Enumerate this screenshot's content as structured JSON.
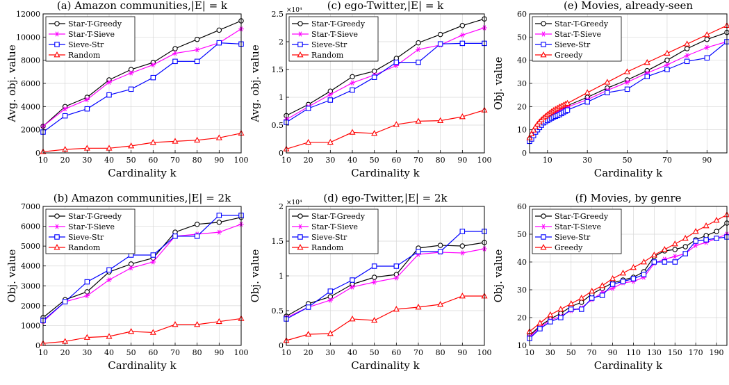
{
  "figure": {
    "panels": [
      {
        "title": "(a) Amazon communities,|E| = k",
        "xlabel": "Cardinality k",
        "ylabel": "Avg. obj. value"
      },
      {
        "title": "(c) ego-Twitter,|E| = k",
        "xlabel": "Cardinality k",
        "ylabel": "Avg. obj. value"
      },
      {
        "title": "(e) Movies, already-seen",
        "xlabel": "Cardinality k",
        "ylabel": "Obj. value"
      },
      {
        "title": "(b) Amazon communities,|E| = 2k",
        "xlabel": "Cardinality k",
        "ylabel": "Obj. value"
      },
      {
        "title": "(d) ego-Twitter,|E| = 2k",
        "xlabel": "Cardinality k",
        "ylabel": "Obj. value"
      },
      {
        "title": "(f) Movies, by genre",
        "xlabel": "Cardinality k",
        "ylabel": "Obj. value"
      }
    ]
  },
  "style": {
    "series_colors": {
      "Star-T-Greedy": "#000000",
      "Star-T-Sieve": "#ff00ff",
      "Sieve-Str": "#0000ff",
      "Random": "#ff0000",
      "Greedy": "#ff0000"
    },
    "series_markers": {
      "Star-T-Greedy": "circle",
      "Star-T-Sieve": "asterisk",
      "Sieve-Str": "square",
      "Random": "triangle",
      "Greedy": "triangle"
    }
  },
  "chart_data": [
    {
      "type": "line",
      "title": "(a) Amazon communities,|E| = k",
      "xlabel": "Cardinality k",
      "ylabel": "Avg. obj. value",
      "xlim": [
        10,
        100
      ],
      "ylim": [
        0,
        12000
      ],
      "xticks": [
        10,
        20,
        30,
        40,
        50,
        60,
        70,
        80,
        90,
        100
      ],
      "yticks": [
        0,
        2000,
        4000,
        6000,
        8000,
        10000,
        12000
      ],
      "grid": true,
      "legend": "top-left",
      "x": [
        10,
        20,
        30,
        40,
        50,
        60,
        70,
        80,
        90,
        100
      ],
      "series": [
        {
          "name": "Star-T-Greedy",
          "values": [
            2300,
            4000,
            4800,
            6300,
            7200,
            7800,
            9000,
            9800,
            10600,
            11400
          ]
        },
        {
          "name": "Star-T-Sieve",
          "values": [
            2300,
            3800,
            4600,
            6100,
            6900,
            7600,
            8600,
            8900,
            9500,
            10700
          ]
        },
        {
          "name": "Sieve-Str",
          "values": [
            1800,
            3200,
            3800,
            5000,
            5500,
            6500,
            7900,
            7900,
            9500,
            9400
          ]
        },
        {
          "name": "Random",
          "values": [
            100,
            300,
            400,
            400,
            600,
            900,
            1000,
            1100,
            1300,
            1700
          ]
        }
      ]
    },
    {
      "type": "line",
      "title": "(c) ego-Twitter,|E| = k",
      "xlabel": "Cardinality k",
      "ylabel": "Avg. obj. value",
      "exponent_label": "×10⁴",
      "xlim": [
        10,
        100
      ],
      "ylim": [
        0,
        2.5
      ],
      "xticks": [
        10,
        20,
        30,
        40,
        50,
        60,
        70,
        80,
        90,
        100
      ],
      "yticks": [
        0,
        0.5,
        1,
        1.5,
        2,
        2.5
      ],
      "grid": true,
      "legend": "top-left",
      "x": [
        10,
        20,
        30,
        40,
        50,
        60,
        70,
        80,
        90,
        100
      ],
      "series": [
        {
          "name": "Star-T-Greedy",
          "values": [
            0.67,
            0.87,
            1.11,
            1.37,
            1.47,
            1.7,
            1.98,
            2.13,
            2.29,
            2.41
          ]
        },
        {
          "name": "Star-T-Sieve",
          "values": [
            0.6,
            0.83,
            1.05,
            1.26,
            1.4,
            1.57,
            1.86,
            1.94,
            2.12,
            2.25
          ]
        },
        {
          "name": "Sieve-Str",
          "values": [
            0.55,
            0.8,
            0.95,
            1.13,
            1.36,
            1.63,
            1.63,
            1.96,
            1.97,
            1.97
          ]
        },
        {
          "name": "Random",
          "values": [
            0.07,
            0.19,
            0.19,
            0.37,
            0.35,
            0.51,
            0.57,
            0.58,
            0.65,
            0.77
          ]
        }
      ]
    },
    {
      "type": "line",
      "title": "(e) Movies, already-seen",
      "xlabel": "Cardinality k",
      "ylabel": "Obj. value",
      "xlim": [
        1,
        100
      ],
      "ylim": [
        0,
        60
      ],
      "xticks": [
        10,
        30,
        50,
        70,
        90
      ],
      "yticks": [
        0,
        10,
        20,
        30,
        40,
        50,
        60
      ],
      "grid": true,
      "legend": "top-left",
      "x": [
        1,
        2,
        3,
        4,
        5,
        6,
        7,
        8,
        9,
        10,
        11,
        12,
        13,
        14,
        15,
        16,
        17,
        18,
        19,
        20,
        30,
        40,
        50,
        60,
        70,
        80,
        90,
        100
      ],
      "series": [
        {
          "name": "Star-T-Greedy",
          "values": [
            6,
            7.5,
            9,
            10.5,
            11.5,
            12.5,
            13.5,
            14.5,
            15.2,
            15.9,
            16.5,
            17.1,
            17.7,
            18.2,
            18.6,
            19,
            19.4,
            19.8,
            20.1,
            20.4,
            24,
            28,
            31.5,
            35.5,
            40,
            45,
            49,
            52
          ]
        },
        {
          "name": "Star-T-Sieve",
          "values": [
            5.5,
            7,
            8.5,
            10,
            11,
            12,
            13,
            13.8,
            14.5,
            15.2,
            15.8,
            16.4,
            16.9,
            17.4,
            17.9,
            18.3,
            18.7,
            19.1,
            19.4,
            19.8,
            23,
            27,
            30.5,
            34.5,
            38,
            42,
            45.5,
            48
          ]
        },
        {
          "name": "Sieve-Str",
          "values": [
            5,
            6,
            7.5,
            9,
            10,
            11,
            12,
            13,
            13.5,
            14,
            14.5,
            15,
            15.5,
            15.8,
            16.1,
            16.5,
            17,
            17.5,
            18,
            18.5,
            22,
            26,
            27.5,
            33,
            36,
            39.5,
            41,
            48
          ]
        },
        {
          "name": "Greedy",
          "values": [
            6.5,
            8.2,
            9.8,
            11.2,
            12.4,
            13.4,
            14.3,
            15.1,
            15.8,
            16.5,
            17.1,
            17.7,
            18.3,
            18.8,
            19.3,
            19.8,
            20.2,
            20.6,
            21,
            21.4,
            26,
            30.5,
            35,
            39,
            43,
            47,
            51,
            55
          ]
        }
      ]
    },
    {
      "type": "line",
      "title": "(b) Amazon communities,|E| = 2k",
      "xlabel": "Cardinality k",
      "ylabel": "Obj. value",
      "xlim": [
        10,
        100
      ],
      "ylim": [
        0,
        7000
      ],
      "xticks": [
        10,
        20,
        30,
        40,
        50,
        60,
        70,
        80,
        90,
        100
      ],
      "yticks": [
        0,
        1000,
        2000,
        3000,
        4000,
        5000,
        6000,
        7000
      ],
      "grid": true,
      "legend": "top-left",
      "x": [
        10,
        20,
        30,
        40,
        50,
        60,
        70,
        80,
        90,
        100
      ],
      "series": [
        {
          "name": "Star-T-Greedy",
          "values": [
            1400,
            2300,
            2700,
            3700,
            4100,
            4400,
            5700,
            6100,
            6200,
            6450
          ]
        },
        {
          "name": "Star-T-Sieve",
          "values": [
            1200,
            2200,
            2500,
            3300,
            3900,
            4200,
            5500,
            5600,
            5700,
            6100
          ]
        },
        {
          "name": "Sieve-Str",
          "values": [
            1250,
            2200,
            3200,
            3800,
            4550,
            4550,
            5500,
            5500,
            6550,
            6550
          ]
        },
        {
          "name": "Random",
          "values": [
            100,
            200,
            400,
            450,
            700,
            650,
            1050,
            1050,
            1200,
            1350
          ]
        }
      ]
    },
    {
      "type": "line",
      "title": "(d) ego-Twitter,|E| = 2k",
      "xlabel": "Cardinality k",
      "ylabel": "Obj. value",
      "exponent_label": "×10⁴",
      "xlim": [
        10,
        100
      ],
      "ylim": [
        0,
        2
      ],
      "xticks": [
        10,
        20,
        30,
        40,
        50,
        60,
        70,
        80,
        90,
        100
      ],
      "yticks": [
        0,
        0.5,
        1,
        1.5,
        2
      ],
      "grid": true,
      "legend": "top-left",
      "x": [
        10,
        20,
        30,
        40,
        50,
        60,
        70,
        80,
        90,
        100
      ],
      "series": [
        {
          "name": "Star-T-Greedy",
          "values": [
            0.42,
            0.6,
            0.7,
            0.88,
            0.98,
            1.02,
            1.4,
            1.44,
            1.43,
            1.48
          ]
        },
        {
          "name": "Star-T-Sieve",
          "values": [
            0.4,
            0.55,
            0.65,
            0.84,
            0.91,
            0.97,
            1.31,
            1.34,
            1.33,
            1.39
          ]
        },
        {
          "name": "Sieve-Str",
          "values": [
            0.38,
            0.55,
            0.78,
            0.94,
            1.14,
            1.14,
            1.35,
            1.35,
            1.64,
            1.64
          ]
        },
        {
          "name": "Random",
          "values": [
            0.07,
            0.16,
            0.17,
            0.38,
            0.36,
            0.52,
            0.55,
            0.59,
            0.71,
            0.71
          ]
        }
      ]
    },
    {
      "type": "line",
      "title": "(f) Movies, by genre",
      "xlabel": "Cardinality k",
      "ylabel": "Obj. value",
      "xlim": [
        10,
        200
      ],
      "ylim": [
        10,
        60
      ],
      "xticks": [
        10,
        30,
        50,
        70,
        90,
        110,
        130,
        150,
        170,
        190
      ],
      "yticks": [
        10,
        20,
        30,
        40,
        50,
        60
      ],
      "grid": true,
      "legend": "top-left",
      "x": [
        10,
        20,
        30,
        40,
        50,
        60,
        70,
        80,
        90,
        100,
        110,
        120,
        130,
        140,
        150,
        160,
        170,
        180,
        190,
        200
      ],
      "series": [
        {
          "name": "Star-T-Greedy",
          "values": [
            13.5,
            17,
            19.5,
            21.5,
            24,
            25.5,
            28.5,
            30.5,
            32.5,
            33.5,
            34.5,
            36.5,
            42,
            44,
            44.5,
            45.5,
            48,
            49.5,
            51,
            54
          ]
        },
        {
          "name": "Star-T-Sieve",
          "values": [
            13,
            16.5,
            19,
            20.5,
            22.5,
            23.5,
            26.5,
            29,
            30.5,
            32.5,
            33,
            34.5,
            39.5,
            41,
            42,
            43,
            46,
            47,
            48.5,
            50
          ]
        },
        {
          "name": "Sieve-Str",
          "values": [
            12.5,
            16,
            18.5,
            20,
            23,
            23,
            27,
            28,
            32,
            33,
            34,
            35.5,
            40,
            40,
            40,
            43,
            47.5,
            48,
            48.5,
            49
          ]
        },
        {
          "name": "Greedy",
          "values": [
            15,
            18,
            21,
            23,
            25,
            27,
            29.5,
            31.5,
            34,
            36,
            38,
            40,
            42.5,
            44.5,
            46.5,
            48.5,
            51,
            53,
            55,
            57
          ]
        }
      ]
    }
  ]
}
